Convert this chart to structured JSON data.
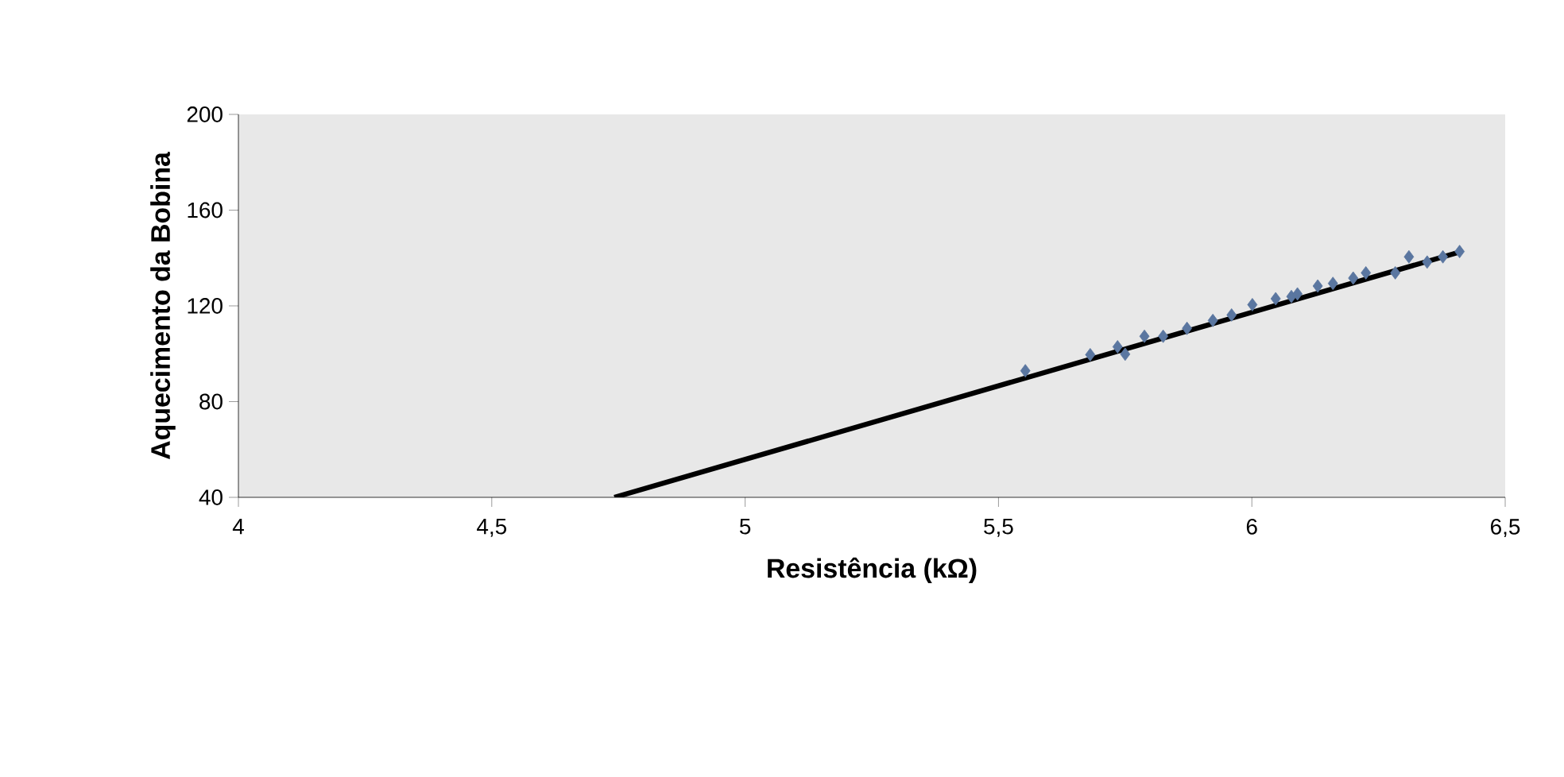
{
  "chart_data": {
    "type": "scatter",
    "xlabel": "Resistência (kΩ)",
    "ylabel": "Aquecimento da Bobina",
    "xlim": [
      4,
      6.5
    ],
    "ylim": [
      40,
      200
    ],
    "xticks": [
      4,
      {
        "value": 4.5,
        "label": "4,5"
      },
      5,
      {
        "value": 5.5,
        "label": "5,5"
      },
      6,
      {
        "value": 6.5,
        "label": "6,5"
      }
    ],
    "yticks": [
      40,
      80,
      120,
      160,
      200
    ],
    "grid": false,
    "series": [
      {
        "marker": "diamond",
        "color": "#5a76a0",
        "x": [
          5.553,
          5.681,
          5.735,
          5.75,
          5.788,
          5.825,
          5.872,
          5.923,
          5.96,
          6.001,
          6.047,
          6.078,
          6.09,
          6.13,
          6.16,
          6.2,
          6.225,
          6.283,
          6.31,
          6.346,
          6.377,
          6.41
        ],
        "values": [
          92.9,
          99.6,
          102.9,
          99.8,
          107.3,
          107.3,
          110.6,
          113.9,
          116.2,
          120.5,
          123.0,
          123.9,
          125.0,
          128.3,
          129.4,
          131.6,
          133.8,
          133.8,
          140.5,
          138.3,
          140.5,
          142.7
        ]
      },
      {
        "type": "line",
        "marker": "none",
        "color": "#000000",
        "x": [
          4.742,
          6.41
        ],
        "values": [
          40,
          142.5
        ]
      }
    ]
  }
}
